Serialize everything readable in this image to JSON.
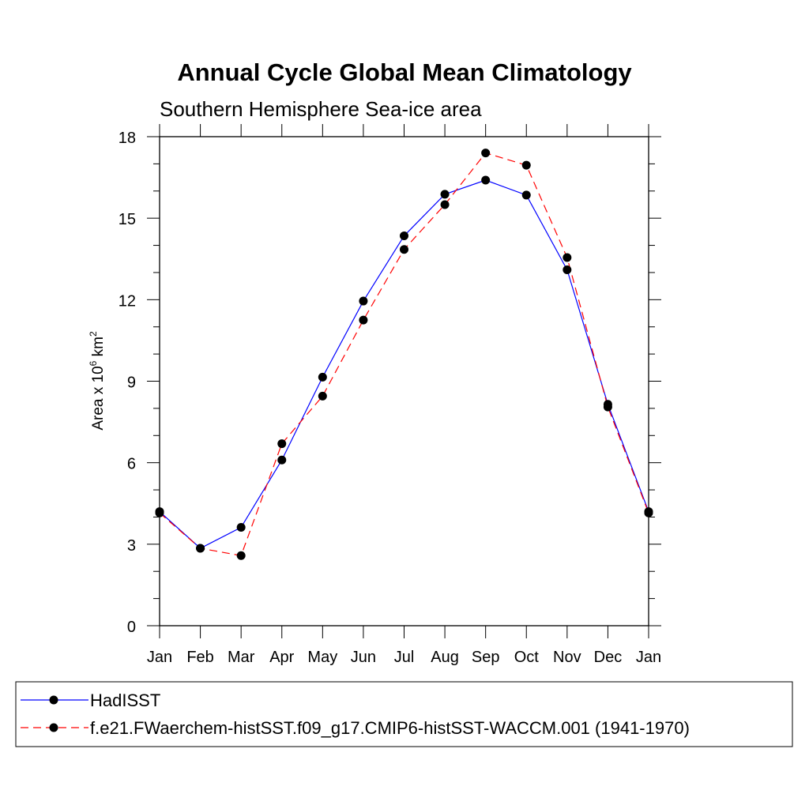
{
  "chart_data": {
    "type": "line",
    "title": "Annual Cycle Global Mean Climatology",
    "subtitle": "Southern Hemisphere Sea-ice area",
    "ylabel": {
      "prefix": "Area x 10",
      "exp1": "6",
      "mid": " km",
      "exp2": "2"
    },
    "xlabel": "",
    "categories": [
      "Jan",
      "Feb",
      "Mar",
      "Apr",
      "May",
      "Jun",
      "Jul",
      "Aug",
      "Sep",
      "Oct",
      "Nov",
      "Dec",
      "Jan"
    ],
    "ylim": [
      0,
      18
    ],
    "yticks": [
      0,
      3,
      6,
      9,
      12,
      15,
      18
    ],
    "series": [
      {
        "name": "HadISST",
        "color": "#0000ff",
        "dash": "",
        "values": [
          4.2,
          2.85,
          3.62,
          6.1,
          9.15,
          11.95,
          14.35,
          15.88,
          16.4,
          15.85,
          13.1,
          8.15,
          4.2
        ]
      },
      {
        "name": "f.e21.FWaerchem-histSST.f09_g17.CMIP6-histSST-WACCM.001 (1941-1970)",
        "color": "#ff0000",
        "dash": "10,6",
        "values": [
          4.15,
          2.85,
          2.58,
          6.7,
          8.45,
          11.25,
          13.85,
          15.5,
          17.4,
          16.95,
          13.55,
          8.05,
          4.15
        ]
      }
    ]
  }
}
